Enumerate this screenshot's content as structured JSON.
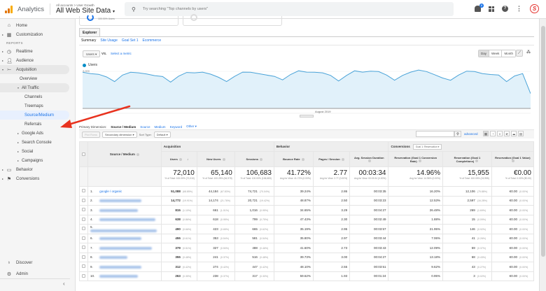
{
  "header": {
    "app_name": "Analytics",
    "breadcrumb": "All accounts > User Growth",
    "property": "All Web Site Data",
    "search_placeholder": "Try searching \"Top channels by users\"",
    "notification_count": "2",
    "avatar_letter": "S"
  },
  "sidebar": {
    "home": "Home",
    "customization": "Customization",
    "reports_heading": "REPORTS",
    "realtime": "Realtime",
    "audience": "Audience",
    "acquisition": "Acquisition",
    "overview": "Overview",
    "all_traffic": "All Traffic",
    "channels": "Channels",
    "treemaps": "Treemaps",
    "source_medium": "Source/Medium",
    "referrals": "Referrals",
    "google_ads": "Google Ads",
    "search_console": "Search Console",
    "social": "Social",
    "campaigns": "Campaigns",
    "behavior": "Behavior",
    "conversions": "Conversions",
    "discover": "Discover",
    "admin": "Admin"
  },
  "cards": {
    "card1_text": "100.00% Users"
  },
  "explorer": {
    "tab": "Explorer",
    "subtabs": [
      "Summary",
      "Site Usage",
      "Goal Set 1",
      "Ecommerce"
    ],
    "metric": "Users",
    "vs": "VS.",
    "select_metric": "Select a metric",
    "periods": [
      "Day",
      "Week",
      "Month"
    ],
    "legend": "Users",
    "y_ticks": [
      "2,000",
      "1,000"
    ],
    "x_label": "August 2019"
  },
  "chart_data": {
    "type": "area",
    "title": "",
    "series": [
      {
        "name": "Users",
        "values": [
          1950,
          1880,
          1840,
          1700,
          1450,
          1800,
          1950,
          1920,
          1860,
          1770,
          1720,
          1420,
          1740,
          1940,
          1920,
          1960,
          1850,
          1680,
          1450,
          1730,
          1960,
          1950,
          1880,
          1800,
          1730,
          1540,
          1830,
          2030,
          1960,
          1950,
          1920,
          1780,
          1480,
          1780,
          2030,
          1960,
          2010,
          1990,
          1800,
          1520,
          1780,
          1960,
          2070,
          1990,
          1820,
          1640,
          1520,
          1800,
          2010,
          1990,
          1880,
          1830,
          1800,
          1450,
          1750,
          1880,
          800
        ]
      }
    ],
    "ylim": [
      0,
      2200
    ],
    "y_ticks": [
      1000,
      2000
    ],
    "xlabel": "August 2019",
    "grid": true
  },
  "dimension": {
    "label": "Primary Dimension:",
    "current": "Source / Medium",
    "options": [
      "Source",
      "Medium",
      "Keyword",
      "Other"
    ],
    "plot_rows": "Plot Rows",
    "secondary": "Secondary dimension",
    "sort_type_label": "Sort Type:",
    "sort_type": "Default",
    "advanced": "advanced"
  },
  "table": {
    "groups": {
      "acquisition": "Acquisition",
      "behavior": "Behavior",
      "conversions": "Conversions",
      "goal_select": "Goal 1: Reservation"
    },
    "columns": [
      "Source / Medium",
      "Users",
      "New Users",
      "Sessions",
      "Bounce Rate",
      "Pages / Session",
      "Avg. Session Duration",
      "Reservation (Goal 1 Conversion Rate)",
      "Reservation (Goal 1 Completions)",
      "Reservation (Goal 1 Value)"
    ],
    "totals": {
      "users": "72,010",
      "users_sub": "% of Total: 100.00% (72,010)",
      "new_users": "65,140",
      "new_users_sub": "% of Total: 100.25% (64,978)",
      "sessions": "106,683",
      "sessions_sub": "% of Total: 100.00% (106,683)",
      "bounce": "41.72%",
      "bounce_sub": "Avg for View: 41.72% (0.00%)",
      "pages": "2.77",
      "pages_sub": "Avg for View: 2.77 (0.00%)",
      "duration": "00:03:34",
      "duration_sub": "Avg for View: 00:03:34 (0.00%)",
      "conv_rate": "14.96%",
      "conv_rate_sub": "Avg for View: 14.96% (0.00%)",
      "completions": "15,955",
      "completions_sub": "% of Total: 100.00% (15,955)",
      "value": "€0.00",
      "value_sub": "% of Total: 0.00% (€0.00)"
    },
    "rows": [
      {
        "n": "1.",
        "src": "google / organic",
        "u": "51,088",
        "up": "(68.85%)",
        "nu": "44,184",
        "nup": "(67.83%)",
        "s": "74,721",
        "sp": "(70.04%)",
        "br": "39.24%",
        "ps": "2.86",
        "d": "00:03:35",
        "cr": "16.20%",
        "c": "12,106",
        "cp": "(75.88%)",
        "v": "€0.00",
        "vp": "(0.00%)"
      },
      {
        "n": "2.",
        "src": "",
        "u": "14,772",
        "up": "(19.91%)",
        "nu": "14,174",
        "nup": "(21.76%)",
        "s": "20,721",
        "sp": "(19.42%)",
        "br": "48.87%",
        "ps": "2.50",
        "d": "00:03:23",
        "cr": "12.53%",
        "c": "2,597",
        "cp": "(16.28%)",
        "v": "€0.00",
        "vp": "(0.00%)"
      },
      {
        "n": "3.",
        "src": "",
        "u": "815",
        "up": "(1.10%)",
        "nu": "661",
        "nup": "(1.01%)",
        "s": "1,016",
        "sp": "(0.95%)",
        "br": "34.65%",
        "ps": "3.29",
        "d": "00:04:27",
        "cr": "26.48%",
        "c": "269",
        "cp": "(1.69%)",
        "v": "€0.00",
        "vp": "(0.00%)"
      },
      {
        "n": "4.",
        "src": "",
        "u": "638",
        "up": "(0.86%)",
        "nu": "618",
        "nup": "(0.95%)",
        "s": "799",
        "sp": "(0.75%)",
        "br": "47.43%",
        "ps": "2.30",
        "d": "00:02:49",
        "cr": "1.88%",
        "c": "15",
        "cp": "(0.09%)",
        "v": "€0.00",
        "vp": "(0.00%)"
      },
      {
        "n": "5.",
        "src": "",
        "u": "490",
        "up": "(0.66%)",
        "nu": "423",
        "nup": "(0.65%)",
        "s": "665",
        "sp": "(0.62%)",
        "br": "35.19%",
        "ps": "2.95",
        "d": "00:03:57",
        "cr": "21.95%",
        "c": "146",
        "cp": "(0.92%)",
        "v": "€0.00",
        "vp": "(0.00%)"
      },
      {
        "n": "6.",
        "src": "",
        "u": "455",
        "up": "(0.61%)",
        "nu": "353",
        "nup": "(0.54%)",
        "s": "581",
        "sp": "(0.54%)",
        "br": "35.80%",
        "ps": "2.97",
        "d": "00:03:44",
        "cr": "7.06%",
        "c": "41",
        "cp": "(0.26%)",
        "v": "€0.00",
        "vp": "(0.00%)"
      },
      {
        "n": "7.",
        "src": "",
        "u": "379",
        "up": "(0.51%)",
        "nu": "327",
        "nup": "(0.50%)",
        "s": "488",
        "sp": "(0.46%)",
        "br": "41.60%",
        "ps": "2.73",
        "d": "00:03:43",
        "cr": "12.09%",
        "c": "59",
        "cp": "(0.37%)",
        "v": "€0.00",
        "vp": "(0.00%)"
      },
      {
        "n": "8.",
        "src": "",
        "u": "355",
        "up": "(0.48%)",
        "nu": "241",
        "nup": "(0.37%)",
        "s": "516",
        "sp": "(0.48%)",
        "br": "39.73%",
        "ps": "3.00",
        "d": "00:04:27",
        "cr": "13.18%",
        "c": "68",
        "cp": "(0.43%)",
        "v": "€0.00",
        "vp": "(0.00%)"
      },
      {
        "n": "9.",
        "src": "",
        "u": "312",
        "up": "(0.42%)",
        "nu": "274",
        "nup": "(0.42%)",
        "s": "447",
        "sp": "(0.42%)",
        "br": "48.10%",
        "ps": "2.55",
        "d": "00:03:51",
        "cr": "9.62%",
        "c": "43",
        "cp": "(0.27%)",
        "v": "€0.00",
        "vp": "(0.00%)"
      },
      {
        "n": "10.",
        "src": "",
        "u": "263",
        "up": "(0.35%)",
        "nu": "238",
        "nup": "(0.37%)",
        "s": "317",
        "sp": "(0.30%)",
        "br": "59.62%",
        "ps": "1.93",
        "d": "00:01:24",
        "cr": "0.95%",
        "c": "3",
        "cp": "(0.02%)",
        "v": "€0.00",
        "vp": "(0.00%)"
      }
    ]
  }
}
